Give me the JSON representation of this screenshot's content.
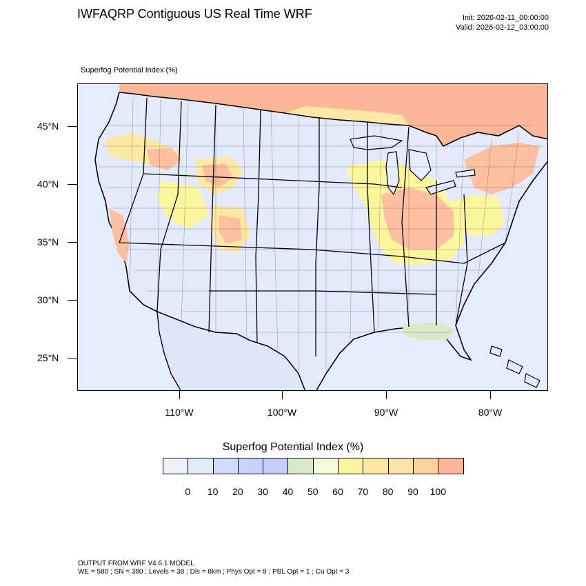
{
  "header": {
    "title": "IWFAQRP Contiguous US Real Time WRF",
    "init_time": "Init: 2026-02-11_00:00:00",
    "valid_time": "Valid: 2026-02-12_03:00:00"
  },
  "map": {
    "variable_label": "Superfog Potential Index   (%)",
    "latitude_labels": [
      "45°N",
      "40°N",
      "35°N",
      "30°N",
      "25°N"
    ],
    "longitude_labels": [
      "110°W",
      "100°W",
      "90°W",
      "80°W"
    ]
  },
  "legend": {
    "title": "Superfog Potential Index  (%)",
    "colors": [
      "#f0f2f8",
      "#e4e9fb",
      "#d2dcfc",
      "#c8d2fb",
      "#c6ccfb",
      "#dde9c6",
      "#f6fbd9",
      "#fbf59e",
      "#fde9a3",
      "#fce3a1",
      "#fcd39c",
      "#fcb799"
    ],
    "labels": [
      "0",
      "10",
      "20",
      "30",
      "40",
      "50",
      "60",
      "70",
      "80",
      "90",
      "100"
    ]
  },
  "footer": {
    "line1": "OUTPUT FROM WRF V4.6.1 MODEL",
    "line2": "WE = 580 ; SN = 380 ; Levels = 38 ; Dis = 8km ; Phys Opt = 8 ; PBL Opt = 1 ; Cu Opt = 3"
  }
}
